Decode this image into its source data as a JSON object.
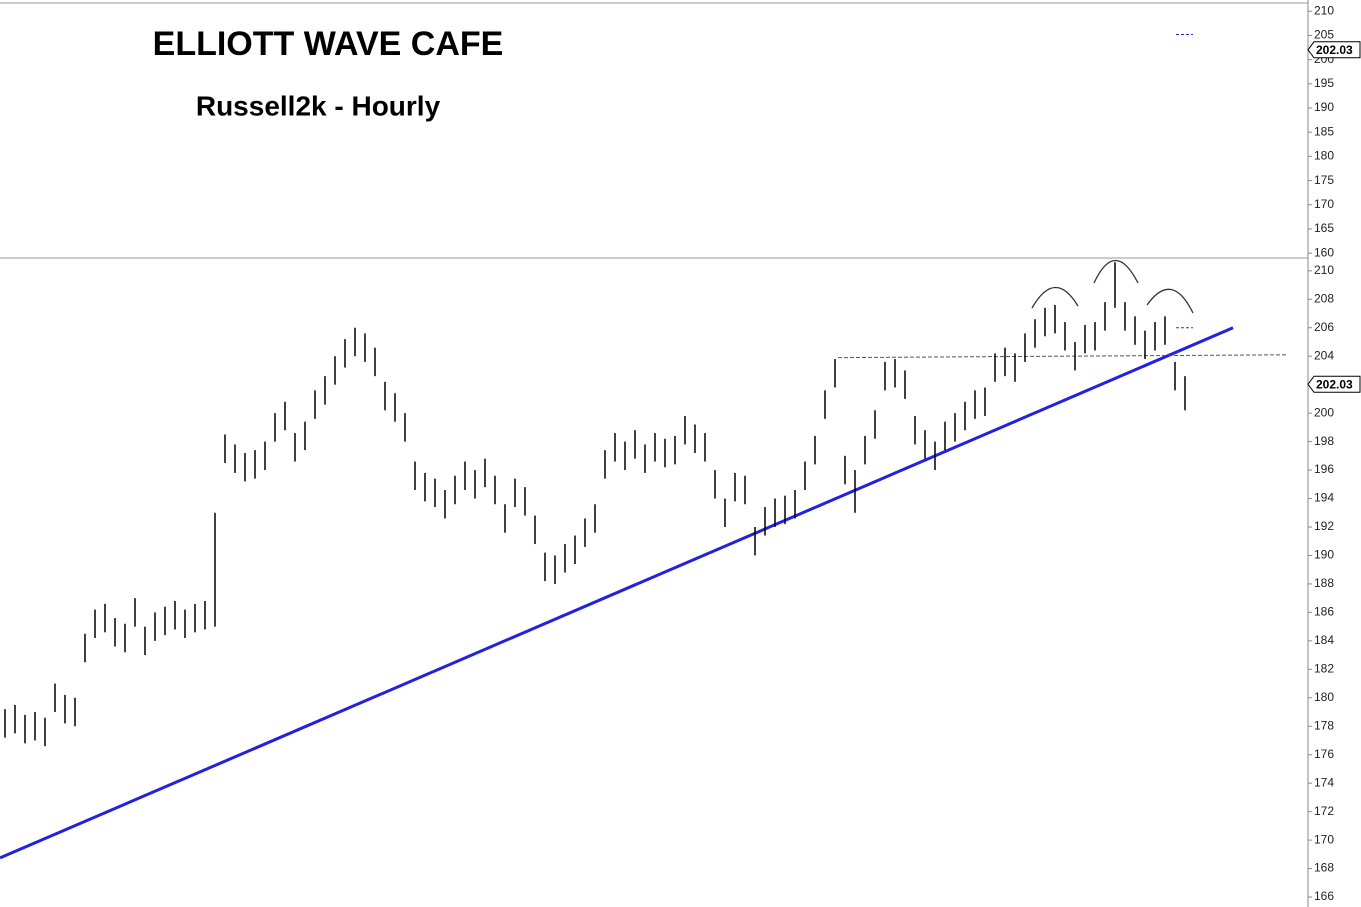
{
  "chart_data": [
    {
      "type": "price-panel",
      "title": "ELLIOTT WAVE CAFE",
      "subtitle": "Russell2k - Hourly",
      "ylim": [
        159,
        211.7
      ],
      "yticks": [
        160,
        165,
        170,
        175,
        180,
        185,
        190,
        195,
        200,
        205,
        210
      ],
      "last_price": 202.03,
      "marker": 205.2,
      "marker_color": "#2233cc"
    },
    {
      "type": "ohlc",
      "color": "#000000",
      "ylim": [
        165.3,
        210.9
      ],
      "yticks": [
        166,
        168,
        170,
        172,
        174,
        176,
        178,
        180,
        182,
        184,
        186,
        188,
        190,
        192,
        194,
        196,
        198,
        200,
        202,
        204,
        206,
        208,
        210
      ],
      "high": [
        179.2,
        179.5,
        178.8,
        179.0,
        178.6,
        181.0,
        180.2,
        180.0,
        184.5,
        186.2,
        186.6,
        185.6,
        185.2,
        187.0,
        185.0,
        186.0,
        186.4,
        186.8,
        186.2,
        186.6,
        186.8,
        193.0,
        198.5,
        197.8,
        197.2,
        197.4,
        198.0,
        200.0,
        200.8,
        198.6,
        199.4,
        201.6,
        202.6,
        204.0,
        205.2,
        206.0,
        205.6,
        204.6,
        202.2,
        201.4,
        200.0,
        196.6,
        195.8,
        195.4,
        194.6,
        195.6,
        196.6,
        196.0,
        196.8,
        195.6,
        193.6,
        195.4,
        194.8,
        192.8,
        190.2,
        190.0,
        190.8,
        191.4,
        192.6,
        193.6,
        197.4,
        198.6,
        198.0,
        198.8,
        197.8,
        198.6,
        198.2,
        198.4,
        199.8,
        199.2,
        198.6,
        196.0,
        194.0,
        195.8,
        195.6,
        192.0,
        193.4,
        194.0,
        194.2,
        194.6,
        196.6,
        198.4,
        201.6,
        203.8,
        197.0,
        196.0,
        198.4,
        200.2,
        203.6,
        203.8,
        203.0,
        199.8,
        198.8,
        198.0,
        199.4,
        200.0,
        200.8,
        201.6,
        201.8,
        204.2,
        204.6,
        204.2,
        205.6,
        206.6,
        207.4,
        207.6,
        206.4,
        205.0,
        206.2,
        206.4,
        207.8,
        210.6,
        207.8,
        206.8,
        205.8,
        206.4,
        206.8,
        203.6,
        202.6
      ],
      "low": [
        177.2,
        177.5,
        176.8,
        177.0,
        176.6,
        179.0,
        178.2,
        178.0,
        182.5,
        184.2,
        184.6,
        183.6,
        183.2,
        185.0,
        183.0,
        184.0,
        184.4,
        184.8,
        184.2,
        184.6,
        184.8,
        185.0,
        196.5,
        195.8,
        195.2,
        195.4,
        196.0,
        198.0,
        198.8,
        196.6,
        197.4,
        199.6,
        200.6,
        202.0,
        203.2,
        204.0,
        203.6,
        202.6,
        200.2,
        199.4,
        198.0,
        194.6,
        193.8,
        193.4,
        192.6,
        193.6,
        194.6,
        194.0,
        194.8,
        193.6,
        191.6,
        193.4,
        192.8,
        190.8,
        188.2,
        188.0,
        188.8,
        189.4,
        190.6,
        191.6,
        195.4,
        196.6,
        196.0,
        196.8,
        195.8,
        196.6,
        196.2,
        196.4,
        197.8,
        197.2,
        196.6,
        194.0,
        192.0,
        193.8,
        193.6,
        190.0,
        191.4,
        192.0,
        192.2,
        192.6,
        194.6,
        196.4,
        199.6,
        201.8,
        195.0,
        193.0,
        196.4,
        198.2,
        201.6,
        201.8,
        201.0,
        197.8,
        196.8,
        196.0,
        197.4,
        198.0,
        198.8,
        199.6,
        199.8,
        202.2,
        202.6,
        202.2,
        203.6,
        204.6,
        205.4,
        205.6,
        204.4,
        203.0,
        204.2,
        204.4,
        205.8,
        207.4,
        205.8,
        204.8,
        203.8,
        204.4,
        204.8,
        201.6,
        200.2
      ],
      "last_price": 202.03,
      "marker": 206.0,
      "marker_color": "#2233cc",
      "trendline": {
        "values": [
          168.75,
          206.0
        ],
        "color": "#2222dd"
      },
      "neckline": {
        "values": [
          203.9,
          204.1
        ],
        "color": "#555555"
      }
    }
  ]
}
